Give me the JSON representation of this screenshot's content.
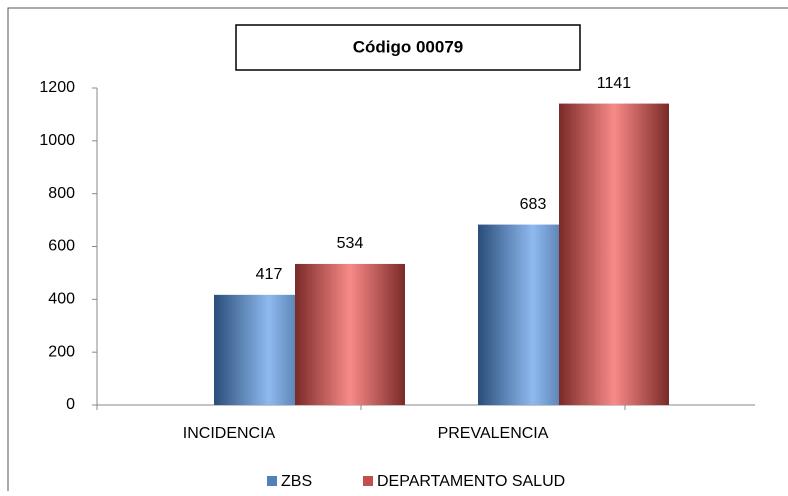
{
  "chart_data": {
    "type": "bar",
    "title": "Código 00079",
    "categories": [
      "INCIDENCIA",
      "PREVALENCIA"
    ],
    "series": [
      {
        "name": "ZBS",
        "color": "#4f81bd",
        "values": [
          417,
          683
        ]
      },
      {
        "name": "DEPARTAMENTO SALUD",
        "color": "#c0504d",
        "values": [
          534,
          1141
        ]
      }
    ],
    "ylim": [
      0,
      1200
    ],
    "yticks": [
      0,
      200,
      400,
      600,
      800,
      1000,
      1200
    ],
    "grid": false,
    "legend": "bottom"
  }
}
